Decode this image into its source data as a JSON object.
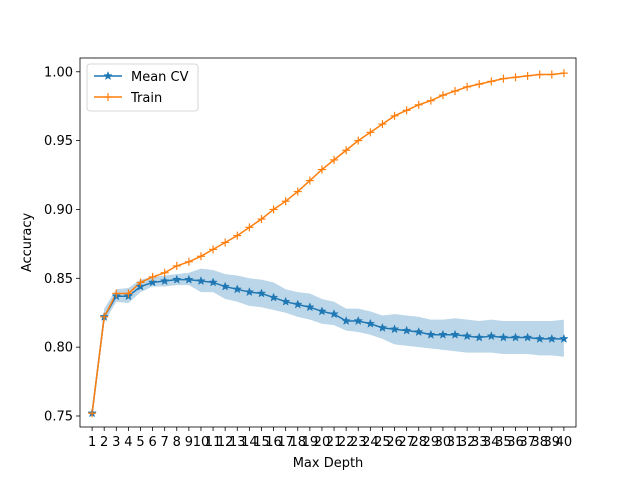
{
  "chart_data": {
    "type": "line",
    "title": "",
    "xlabel": "Max Depth",
    "ylabel": "Accuracy",
    "xlim": [
      0,
      41
    ],
    "ylim": [
      0.742,
      1.01
    ],
    "x": [
      1,
      2,
      3,
      4,
      5,
      6,
      7,
      8,
      9,
      10,
      11,
      12,
      13,
      14,
      15,
      16,
      17,
      18,
      19,
      20,
      21,
      22,
      23,
      24,
      25,
      26,
      27,
      28,
      29,
      30,
      31,
      32,
      33,
      34,
      35,
      36,
      37,
      38,
      39,
      40
    ],
    "x_tick_labels": [
      "1",
      "2",
      "3",
      "4",
      "5",
      "6",
      "7",
      "8",
      "9",
      "10",
      "11",
      "12",
      "13",
      "14",
      "15",
      "16",
      "17",
      "18",
      "19",
      "20",
      "21",
      "22",
      "23",
      "24",
      "25",
      "26",
      "27",
      "28",
      "29",
      "30",
      "31",
      "32",
      "33",
      "34",
      "35",
      "36",
      "37",
      "38",
      "39",
      "40"
    ],
    "y_ticks": [
      0.75,
      0.8,
      0.85,
      0.9,
      0.95,
      1.0
    ],
    "y_tick_labels": [
      "0.75",
      "0.80",
      "0.85",
      "0.90",
      "0.95",
      "1.00"
    ],
    "grid": false,
    "legend_position": "top-left",
    "series": [
      {
        "name": "Mean CV",
        "color": "#1f77b4",
        "marker": "star",
        "values": [
          0.752,
          0.822,
          0.837,
          0.837,
          0.844,
          0.847,
          0.848,
          0.849,
          0.849,
          0.848,
          0.847,
          0.844,
          0.842,
          0.84,
          0.839,
          0.836,
          0.833,
          0.831,
          0.829,
          0.826,
          0.824,
          0.819,
          0.819,
          0.817,
          0.814,
          0.813,
          0.812,
          0.811,
          0.809,
          0.809,
          0.809,
          0.808,
          0.807,
          0.808,
          0.807,
          0.807,
          0.807,
          0.806,
          0.806,
          0.806
        ],
        "band_lower": [
          0.752,
          0.818,
          0.833,
          0.832,
          0.84,
          0.844,
          0.844,
          0.845,
          0.845,
          0.84,
          0.84,
          0.835,
          0.833,
          0.83,
          0.829,
          0.827,
          0.825,
          0.822,
          0.82,
          0.817,
          0.816,
          0.812,
          0.811,
          0.809,
          0.806,
          0.802,
          0.801,
          0.8,
          0.799,
          0.798,
          0.797,
          0.796,
          0.796,
          0.796,
          0.795,
          0.795,
          0.795,
          0.794,
          0.794,
          0.793
        ],
        "band_upper": [
          0.752,
          0.828,
          0.842,
          0.843,
          0.849,
          0.851,
          0.852,
          0.853,
          0.854,
          0.857,
          0.856,
          0.853,
          0.852,
          0.85,
          0.849,
          0.847,
          0.842,
          0.84,
          0.839,
          0.835,
          0.833,
          0.828,
          0.828,
          0.826,
          0.823,
          0.824,
          0.823,
          0.822,
          0.82,
          0.82,
          0.821,
          0.82,
          0.819,
          0.82,
          0.819,
          0.819,
          0.819,
          0.819,
          0.819,
          0.82
        ]
      },
      {
        "name": "Train",
        "color": "#ff7f0e",
        "marker": "plus",
        "values": [
          0.752,
          0.822,
          0.839,
          0.839,
          0.847,
          0.851,
          0.854,
          0.859,
          0.862,
          0.866,
          0.871,
          0.876,
          0.881,
          0.887,
          0.893,
          0.9,
          0.906,
          0.913,
          0.921,
          0.929,
          0.936,
          0.943,
          0.95,
          0.956,
          0.962,
          0.968,
          0.972,
          0.976,
          0.979,
          0.983,
          0.986,
          0.989,
          0.991,
          0.993,
          0.995,
          0.996,
          0.997,
          0.998,
          0.998,
          0.999
        ]
      }
    ]
  }
}
